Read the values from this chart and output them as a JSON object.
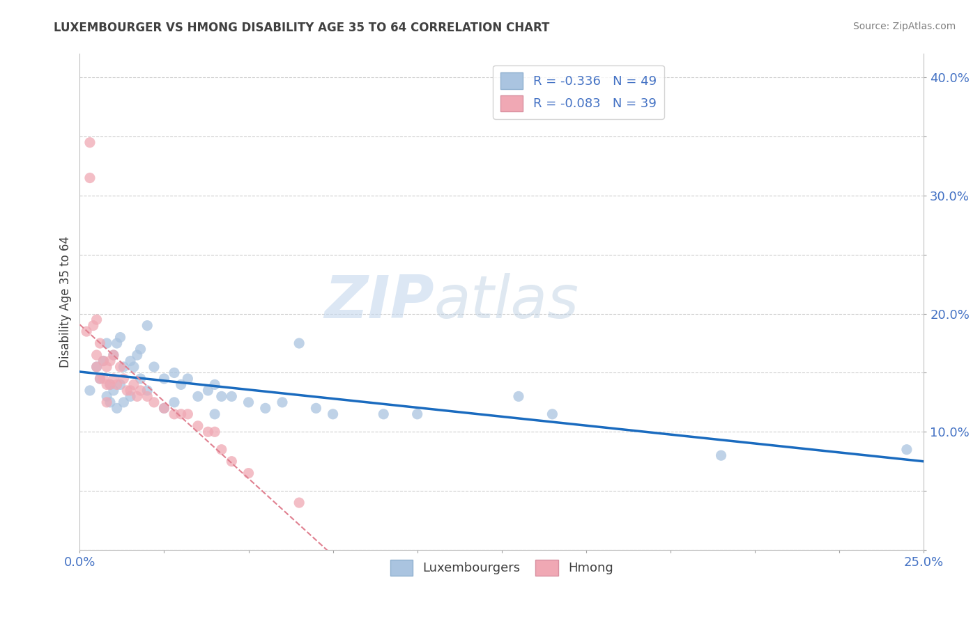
{
  "title": "LUXEMBOURGER VS HMONG DISABILITY AGE 35 TO 64 CORRELATION CHART",
  "source_text": "Source: ZipAtlas.com",
  "ylabel": "Disability Age 35 to 64",
  "xlim": [
    0.0,
    0.25
  ],
  "ylim": [
    0.0,
    0.42
  ],
  "lux_color": "#aac4e0",
  "hmong_color": "#f0a8b4",
  "lux_line_color": "#1a6bbf",
  "hmong_line_color": "#e08090",
  "watermark_zip": "ZIP",
  "watermark_atlas": "atlas",
  "legend_lux_r": "-0.336",
  "legend_lux_n": "49",
  "legend_hmong_r": "-0.083",
  "legend_hmong_n": "39",
  "lux_x": [
    0.003,
    0.005,
    0.006,
    0.007,
    0.008,
    0.008,
    0.009,
    0.009,
    0.01,
    0.01,
    0.011,
    0.011,
    0.012,
    0.012,
    0.013,
    0.013,
    0.015,
    0.015,
    0.016,
    0.017,
    0.018,
    0.018,
    0.02,
    0.02,
    0.022,
    0.025,
    0.025,
    0.028,
    0.028,
    0.03,
    0.032,
    0.035,
    0.038,
    0.04,
    0.04,
    0.042,
    0.045,
    0.05,
    0.055,
    0.06,
    0.065,
    0.07,
    0.075,
    0.09,
    0.1,
    0.13,
    0.14,
    0.19,
    0.245
  ],
  "lux_y": [
    0.135,
    0.155,
    0.145,
    0.16,
    0.175,
    0.13,
    0.14,
    0.125,
    0.165,
    0.135,
    0.175,
    0.12,
    0.18,
    0.14,
    0.155,
    0.125,
    0.16,
    0.13,
    0.155,
    0.165,
    0.17,
    0.145,
    0.19,
    0.135,
    0.155,
    0.145,
    0.12,
    0.15,
    0.125,
    0.14,
    0.145,
    0.13,
    0.135,
    0.14,
    0.115,
    0.13,
    0.13,
    0.125,
    0.12,
    0.125,
    0.175,
    0.12,
    0.115,
    0.115,
    0.115,
    0.13,
    0.115,
    0.08,
    0.085
  ],
  "hmong_x": [
    0.002,
    0.003,
    0.003,
    0.004,
    0.005,
    0.005,
    0.005,
    0.006,
    0.006,
    0.007,
    0.007,
    0.008,
    0.008,
    0.008,
    0.009,
    0.009,
    0.01,
    0.01,
    0.011,
    0.012,
    0.013,
    0.014,
    0.015,
    0.016,
    0.017,
    0.018,
    0.02,
    0.022,
    0.025,
    0.028,
    0.03,
    0.032,
    0.035,
    0.038,
    0.04,
    0.042,
    0.045,
    0.05,
    0.065
  ],
  "hmong_y": [
    0.185,
    0.345,
    0.315,
    0.19,
    0.195,
    0.165,
    0.155,
    0.175,
    0.145,
    0.16,
    0.145,
    0.155,
    0.14,
    0.125,
    0.16,
    0.14,
    0.165,
    0.145,
    0.14,
    0.155,
    0.145,
    0.135,
    0.135,
    0.14,
    0.13,
    0.135,
    0.13,
    0.125,
    0.12,
    0.115,
    0.115,
    0.115,
    0.105,
    0.1,
    0.1,
    0.085,
    0.075,
    0.065,
    0.04
  ]
}
